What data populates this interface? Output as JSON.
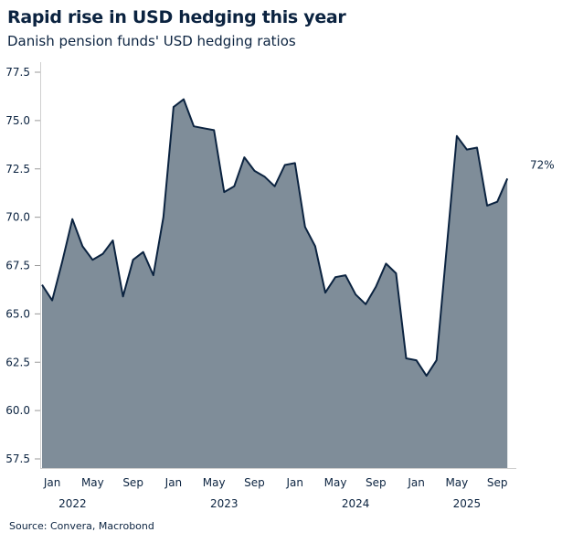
{
  "header": {
    "title": "Rapid rise in USD hedging this year",
    "subtitle": "Danish pension funds' USD hedging ratios"
  },
  "footer": {
    "source": "Source: Convera, Macrobond"
  },
  "chart_data": {
    "type": "area",
    "title": "Rapid rise in USD hedging this year",
    "subtitle": "Danish pension funds' USD hedging ratios",
    "ylim": [
      57.5,
      77.5
    ],
    "yticks": [
      "57.5",
      "60.0",
      "62.5",
      "65.0",
      "67.5",
      "70.0",
      "72.5",
      "75.0",
      "77.5"
    ],
    "xticks": [
      {
        "label": "Jan",
        "index": 1
      },
      {
        "label": "May",
        "index": 5
      },
      {
        "label": "Sep",
        "index": 9
      },
      {
        "label": "Jan",
        "index": 13
      },
      {
        "label": "May",
        "index": 17
      },
      {
        "label": "Sep",
        "index": 21
      },
      {
        "label": "Jan",
        "index": 25
      },
      {
        "label": "May",
        "index": 29
      },
      {
        "label": "Sep",
        "index": 33
      },
      {
        "label": "Jan",
        "index": 37
      },
      {
        "label": "May",
        "index": 41
      },
      {
        "label": "Sep",
        "index": 45
      }
    ],
    "year_labels": [
      {
        "label": "2022",
        "index": 5
      },
      {
        "label": "2023",
        "index": 18
      },
      {
        "label": "2024",
        "index": 31
      },
      {
        "label": "2025",
        "index": 42
      }
    ],
    "x": [
      "2021-12",
      "2022-01",
      "2022-02",
      "2022-03",
      "2022-04",
      "2022-05",
      "2022-06",
      "2022-07",
      "2022-08",
      "2022-09",
      "2022-10",
      "2022-11",
      "2022-12",
      "2023-01",
      "2023-02",
      "2023-03",
      "2023-04",
      "2023-05",
      "2023-06",
      "2023-07",
      "2023-08",
      "2023-09",
      "2023-10",
      "2023-11",
      "2023-12",
      "2024-01",
      "2024-02",
      "2024-03",
      "2024-04",
      "2024-05",
      "2024-06",
      "2024-07",
      "2024-08",
      "2024-09",
      "2024-10",
      "2024-11",
      "2024-12",
      "2025-01",
      "2025-02",
      "2025-03",
      "2025-04",
      "2025-05",
      "2025-06",
      "2025-07",
      "2025-08",
      "2025-09",
      "2025-10"
    ],
    "values": [
      66.5,
      65.7,
      67.7,
      69.9,
      68.5,
      67.8,
      68.1,
      68.8,
      65.9,
      67.8,
      68.2,
      67.0,
      70.0,
      75.7,
      76.1,
      74.7,
      74.6,
      74.5,
      71.3,
      71.6,
      73.1,
      72.4,
      72.1,
      71.6,
      72.7,
      72.8,
      69.5,
      68.5,
      66.1,
      66.9,
      67.0,
      66.0,
      65.5,
      66.4,
      67.6,
      67.1,
      62.7,
      62.6,
      61.8,
      62.6,
      68.4,
      74.2,
      73.5,
      73.6,
      70.6,
      70.8,
      72.0
    ],
    "end_label": "72%",
    "colors": {
      "fill": "#7f8d99",
      "line": "#0b2340"
    },
    "grid": false
  }
}
